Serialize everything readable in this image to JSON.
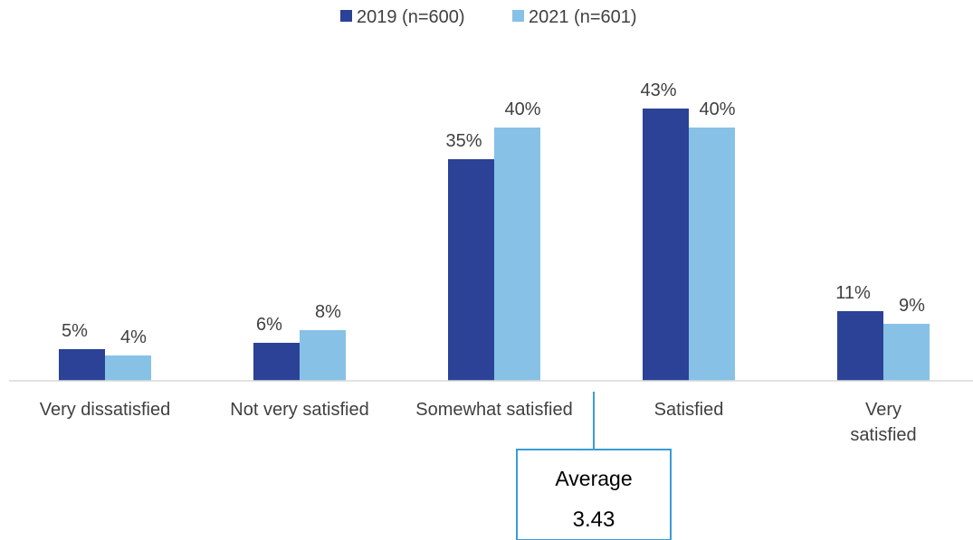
{
  "chart_data": {
    "type": "bar",
    "categories": [
      [
        "Very dissatisfied"
      ],
      [
        "Not very satisfied"
      ],
      [
        "Somewhat satisfied"
      ],
      [
        "Satisfied"
      ],
      [
        "Very",
        "satisfied"
      ]
    ],
    "series": [
      {
        "name": "2019 (n=600)",
        "color": "#2b4297",
        "values": [
          5,
          6,
          35,
          43,
          11
        ],
        "labels": [
          "5%",
          "6%",
          "35%",
          "43%",
          "11%"
        ]
      },
      {
        "name": "2021 (n=601)",
        "color": "#87c1e6",
        "values": [
          4,
          8,
          40,
          40,
          9
        ],
        "labels": [
          "4%",
          "8%",
          "40%",
          "40%",
          "9%"
        ]
      }
    ],
    "ylim": [
      0,
      50
    ],
    "legend_position": "top-center",
    "grid": false,
    "annotation": {
      "title": "Average",
      "value": "3.43",
      "border_color": "#3b9bd5"
    }
  }
}
